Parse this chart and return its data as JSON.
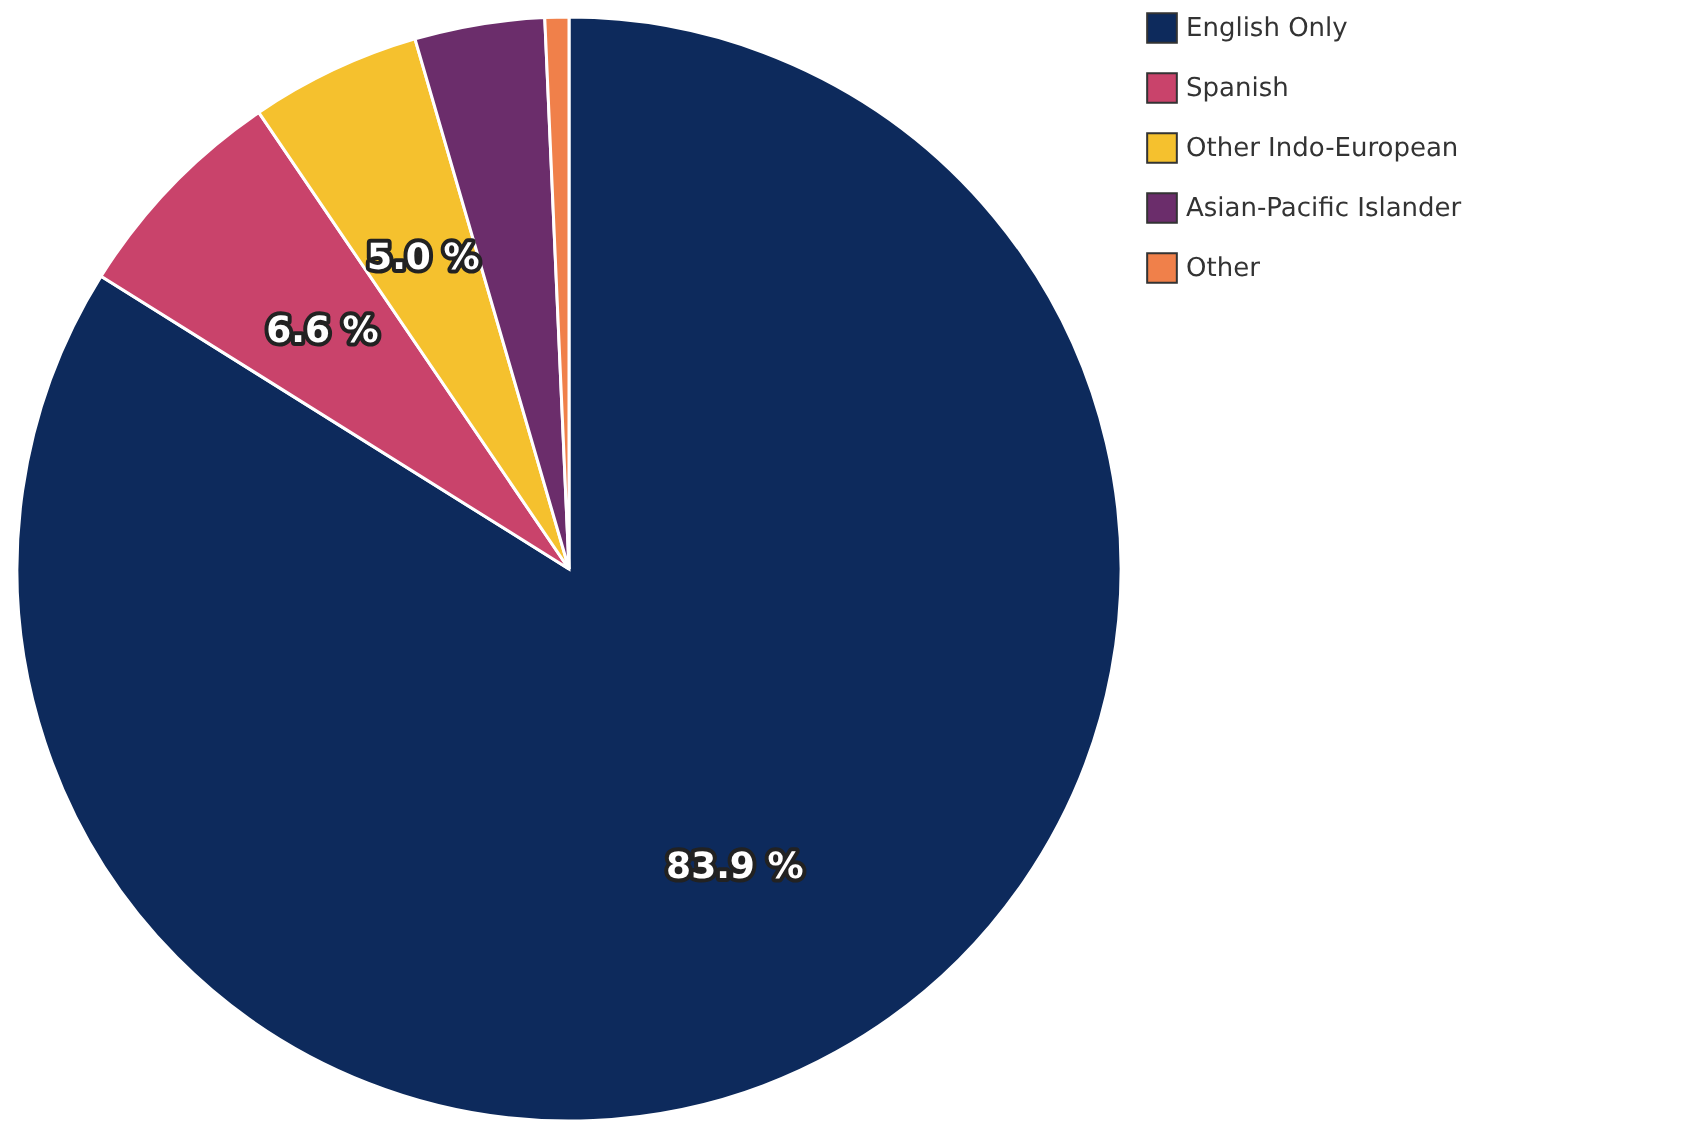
{
  "chart_data": {
    "type": "pie",
    "categories": [
      "English Only",
      "Spanish",
      "Other Indo-European",
      "Asian-Pacific Islander",
      "Other"
    ],
    "values": [
      83.9,
      6.6,
      5.0,
      3.8,
      0.7
    ],
    "colors": [
      "#0d2a5c",
      "#c9436b",
      "#f5c12e",
      "#6b2d6b",
      "#f0804a"
    ],
    "value_labels": [
      "83.9 %",
      "6.6 %",
      "5.0 %",
      null,
      null
    ],
    "legend": "right"
  }
}
